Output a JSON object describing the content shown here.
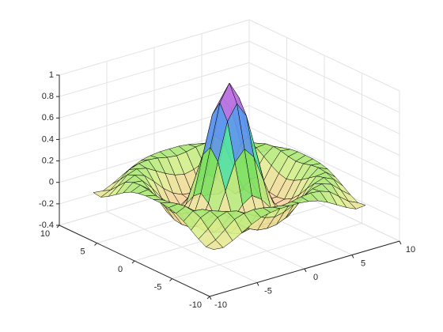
{
  "chart_data": {
    "type": "surface",
    "x": [
      -8,
      -7,
      -6,
      -5,
      -4,
      -3,
      -2,
      -1,
      0,
      1,
      2,
      3,
      4,
      5,
      6,
      7,
      8
    ],
    "y": [
      -8,
      -7,
      -6,
      -5,
      -4,
      -3,
      -2,
      -1,
      0,
      1,
      2,
      3,
      4,
      5,
      6,
      7,
      8
    ],
    "z": [
      [
        -0.08,
        -0.09,
        -0.05,
        0,
        0.05,
        0.09,
        0.11,
        0.12,
        0.12,
        0.12,
        0.11,
        0.09,
        0.05,
        0,
        -0.05,
        -0.09,
        -0.08
      ],
      [
        -0.09,
        -0.05,
        0.02,
        0.09,
        0.12,
        0.13,
        0.12,
        0.1,
        0.09,
        0.1,
        0.12,
        0.13,
        0.12,
        0.09,
        0.02,
        -0.05,
        -0.09
      ],
      [
        -0.05,
        0.02,
        0.1,
        0.13,
        0.11,
        0.06,
        0.01,
        -0.03,
        -0.05,
        -0.03,
        0.01,
        0.06,
        0.11,
        0.13,
        0.1,
        0.02,
        -0.05
      ],
      [
        0,
        0.09,
        0.13,
        0.1,
        0.02,
        -0.07,
        -0.14,
        -0.18,
        -0.19,
        -0.18,
        -0.14,
        -0.07,
        0.02,
        0.1,
        0.13,
        0.09,
        0
      ],
      [
        0.05,
        0.12,
        0.11,
        0.02,
        -0.1,
        -0.19,
        -0.22,
        -0.2,
        -0.19,
        -0.2,
        -0.22,
        -0.19,
        -0.1,
        0.02,
        0.11,
        0.12,
        0.05
      ],
      [
        0.09,
        0.13,
        0.06,
        -0.07,
        -0.19,
        -0.21,
        -0.12,
        -0.01,
        0.05,
        -0.01,
        -0.12,
        -0.21,
        -0.19,
        -0.07,
        0.06,
        0.13,
        0.09
      ],
      [
        0.11,
        0.12,
        0.01,
        -0.14,
        -0.22,
        -0.12,
        0.11,
        0.35,
        0.45,
        0.35,
        0.11,
        -0.12,
        -0.22,
        -0.14,
        0.01,
        0.12,
        0.11
      ],
      [
        0.12,
        0.1,
        -0.03,
        -0.18,
        -0.2,
        -0.01,
        0.35,
        0.7,
        0.84,
        0.7,
        0.35,
        -0.01,
        -0.2,
        -0.18,
        -0.03,
        0.1,
        0.12
      ],
      [
        0.12,
        0.09,
        -0.05,
        -0.19,
        -0.19,
        0.05,
        0.45,
        0.84,
        1,
        0.84,
        0.45,
        0.05,
        -0.19,
        -0.19,
        -0.05,
        0.09,
        0.12
      ],
      [
        0.12,
        0.1,
        -0.03,
        -0.18,
        -0.2,
        -0.01,
        0.35,
        0.7,
        0.84,
        0.7,
        0.35,
        -0.01,
        -0.2,
        -0.18,
        -0.03,
        0.1,
        0.12
      ],
      [
        0.11,
        0.12,
        0.01,
        -0.14,
        -0.22,
        -0.12,
        0.11,
        0.35,
        0.45,
        0.35,
        0.11,
        -0.12,
        -0.22,
        -0.14,
        0.01,
        0.12,
        0.11
      ],
      [
        0.09,
        0.13,
        0.06,
        -0.07,
        -0.19,
        -0.21,
        -0.12,
        -0.01,
        0.05,
        -0.01,
        -0.12,
        -0.21,
        -0.19,
        -0.07,
        0.06,
        0.13,
        0.09
      ],
      [
        0.05,
        0.12,
        0.11,
        0.02,
        -0.1,
        -0.19,
        -0.22,
        -0.2,
        -0.19,
        -0.2,
        -0.22,
        -0.19,
        -0.1,
        0.02,
        0.11,
        0.12,
        0.05
      ],
      [
        0,
        0.09,
        0.13,
        0.1,
        0.02,
        -0.07,
        -0.14,
        -0.18,
        -0.19,
        -0.18,
        -0.14,
        -0.07,
        0.02,
        0.1,
        0.13,
        0.09,
        0
      ],
      [
        -0.05,
        0.02,
        0.1,
        0.13,
        0.11,
        0.06,
        0.01,
        -0.03,
        -0.05,
        -0.03,
        0.01,
        0.06,
        0.11,
        0.13,
        0.1,
        0.02,
        -0.05
      ],
      [
        -0.09,
        -0.05,
        0.02,
        0.09,
        0.12,
        0.13,
        0.12,
        0.1,
        0.09,
        0.1,
        0.12,
        0.13,
        0.12,
        0.09,
        0.02,
        -0.05,
        -0.09
      ],
      [
        -0.08,
        -0.09,
        -0.05,
        0,
        0.05,
        0.09,
        0.11,
        0.12,
        0.12,
        0.12,
        0.11,
        0.09,
        0.05,
        0,
        -0.05,
        -0.09,
        -0.08
      ]
    ],
    "xlim": [
      -10,
      10
    ],
    "ylim": [
      -10,
      10
    ],
    "zlim": [
      -0.4,
      1
    ],
    "xticks": [
      -10,
      -5,
      0,
      5,
      10
    ],
    "yticks": [
      -10,
      -5,
      0,
      5,
      10
    ],
    "zticks": [
      -0.4,
      -0.2,
      0,
      0.2,
      0.4,
      0.6,
      0.8,
      1
    ],
    "grid": true,
    "edge_color": "#000000",
    "colormap": [
      "#f5a080",
      "#f8d0a0",
      "#e0f090",
      "#80e060",
      "#50e0b0",
      "#6090f0",
      "#b070f0",
      "#f080b0"
    ]
  }
}
